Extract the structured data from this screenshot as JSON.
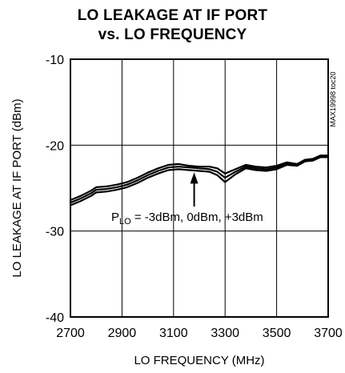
{
  "chart_data": {
    "type": "line",
    "title_line1": "LO LEAKAGE AT IF PORT",
    "title_line2": "vs. LO FREQUENCY",
    "xlabel": "LO FREQUENCY (MHz)",
    "ylabel": "LO LEAKAGE AT IF PORT (dBm)",
    "xlim": [
      2700,
      3700
    ],
    "ylim": [
      -40,
      -10
    ],
    "xticks": [
      2700,
      2900,
      3100,
      3300,
      3500,
      3700
    ],
    "yticks": [
      -10,
      -20,
      -30,
      -40
    ],
    "xtick_labels": [
      "2700",
      "2900",
      "3100",
      "3300",
      "3500",
      "3700"
    ],
    "ytick_labels": [
      "-10",
      "-20",
      "-30",
      "-40"
    ],
    "grid": true,
    "side_label": "MAX19998 toc20",
    "annotation": {
      "sym": "P",
      "sub": "LO",
      "rest": " = -3dBm, 0dBm, +3dBm",
      "arrow_to": {
        "x": 3180,
        "y": -22.8
      }
    },
    "series": [
      {
        "x": [
          2700,
          2740,
          2780,
          2800,
          2840,
          2880,
          2920,
          2960,
          3000,
          3040,
          3080,
          3120,
          3160,
          3200,
          3240,
          3270,
          3300,
          3340,
          3380,
          3420,
          3460,
          3500,
          3540,
          3580,
          3610,
          3640,
          3670,
          3700
        ],
        "y": [
          -26.4,
          -25.9,
          -25.3,
          -24.9,
          -24.8,
          -24.6,
          -24.3,
          -23.8,
          -23.2,
          -22.7,
          -22.3,
          -22.2,
          -22.4,
          -22.5,
          -22.5,
          -22.7,
          -23.3,
          -22.8,
          -22.3,
          -22.5,
          -22.6,
          -22.4,
          -22.0,
          -22.2,
          -21.7,
          -21.6,
          -21.2,
          -21.2
        ]
      },
      {
        "x": [
          2700,
          2740,
          2780,
          2800,
          2840,
          2880,
          2920,
          2960,
          3000,
          3040,
          3080,
          3120,
          3160,
          3200,
          3240,
          3270,
          3300,
          3340,
          3380,
          3420,
          3460,
          3500,
          3540,
          3580,
          3610,
          3640,
          3670,
          3700
        ],
        "y": [
          -26.7,
          -26.2,
          -25.6,
          -25.2,
          -25.1,
          -24.9,
          -24.6,
          -24.1,
          -23.5,
          -23.0,
          -22.6,
          -22.5,
          -22.6,
          -22.7,
          -22.8,
          -23.1,
          -23.8,
          -23.1,
          -22.5,
          -22.7,
          -22.8,
          -22.6,
          -22.1,
          -22.3,
          -21.8,
          -21.7,
          -21.3,
          -21.3
        ]
      },
      {
        "x": [
          2700,
          2740,
          2780,
          2800,
          2840,
          2880,
          2920,
          2960,
          3000,
          3040,
          3080,
          3120,
          3160,
          3200,
          3240,
          3270,
          3300,
          3340,
          3380,
          3420,
          3460,
          3500,
          3540,
          3580,
          3610,
          3640,
          3670,
          3700
        ],
        "y": [
          -27.0,
          -26.5,
          -25.9,
          -25.5,
          -25.4,
          -25.2,
          -24.9,
          -24.4,
          -23.8,
          -23.3,
          -22.9,
          -22.8,
          -22.9,
          -23.0,
          -23.1,
          -23.5,
          -24.3,
          -23.4,
          -22.7,
          -22.9,
          -23.0,
          -22.8,
          -22.3,
          -22.4,
          -21.9,
          -21.8,
          -21.4,
          -21.4
        ]
      }
    ]
  }
}
